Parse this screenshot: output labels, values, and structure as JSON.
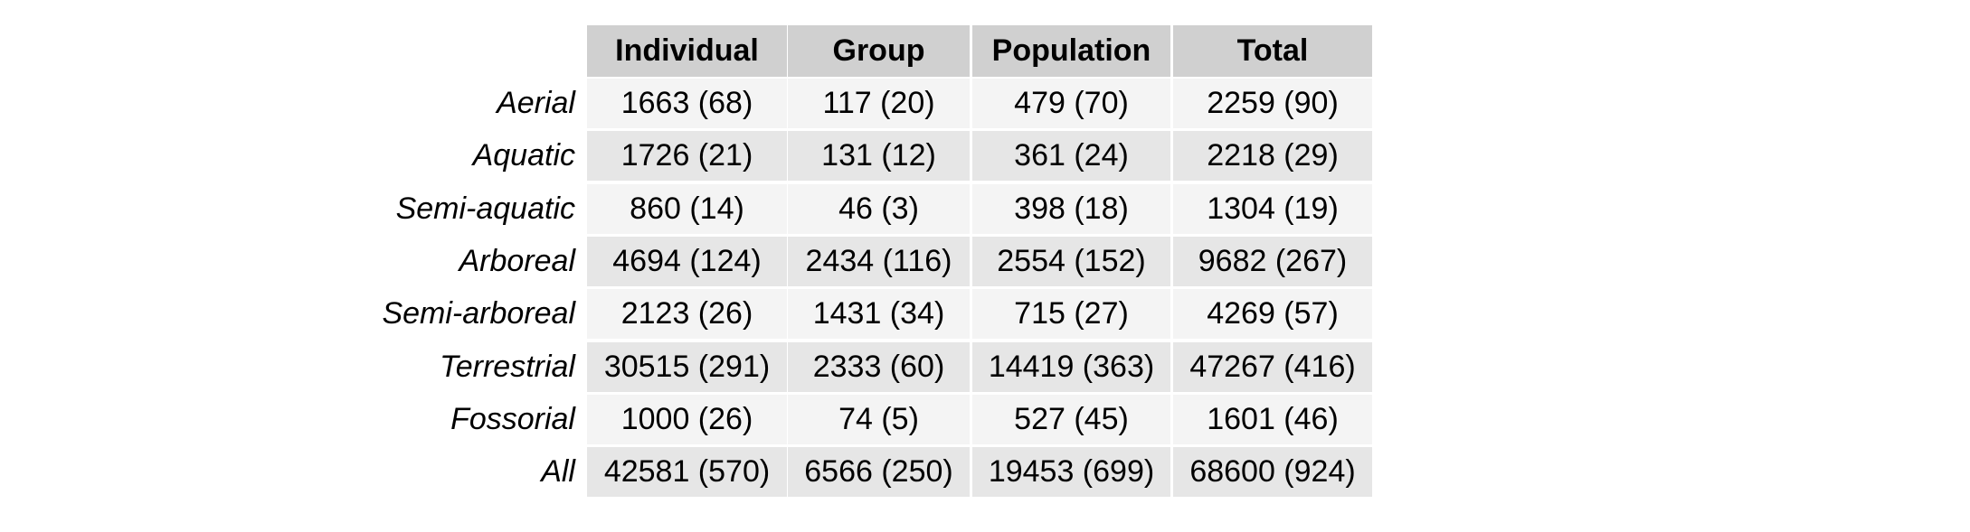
{
  "chart_data": {
    "type": "table",
    "columns": [
      "Individual",
      "Group",
      "Population",
      "Total"
    ],
    "rows": [
      {
        "label": "Aerial",
        "cells": [
          "1663 (68)",
          "117 (20)",
          "479 (70)",
          "2259 (90)"
        ]
      },
      {
        "label": "Aquatic",
        "cells": [
          "1726 (21)",
          "131 (12)",
          "361 (24)",
          "2218 (29)"
        ]
      },
      {
        "label": "Semi-aquatic",
        "cells": [
          "860 (14)",
          "46 (3)",
          "398 (18)",
          "1304 (19)"
        ]
      },
      {
        "label": "Arboreal",
        "cells": [
          "4694 (124)",
          "2434 (116)",
          "2554 (152)",
          "9682 (267)"
        ]
      },
      {
        "label": "Semi-arboreal",
        "cells": [
          "2123 (26)",
          "1431 (34)",
          "715 (27)",
          "4269 (57)"
        ]
      },
      {
        "label": "Terrestrial",
        "cells": [
          "30515 (291)",
          "2333 (60)",
          "14419 (363)",
          "47267 (416)"
        ]
      },
      {
        "label": "Fossorial",
        "cells": [
          "1000 (26)",
          "74 (5)",
          "527 (45)",
          "1601 (46)"
        ]
      },
      {
        "label": "All",
        "cells": [
          "42581 (570)",
          "6566 (250)",
          "19453 (699)",
          "68600 (924)"
        ]
      }
    ],
    "colors": {
      "header_bg": "#d0d0d0",
      "row_bg_light": "#f4f4f4",
      "row_bg_dark": "#e6e6e6",
      "text": "#000000",
      "cell_border": "#ffffff"
    }
  }
}
